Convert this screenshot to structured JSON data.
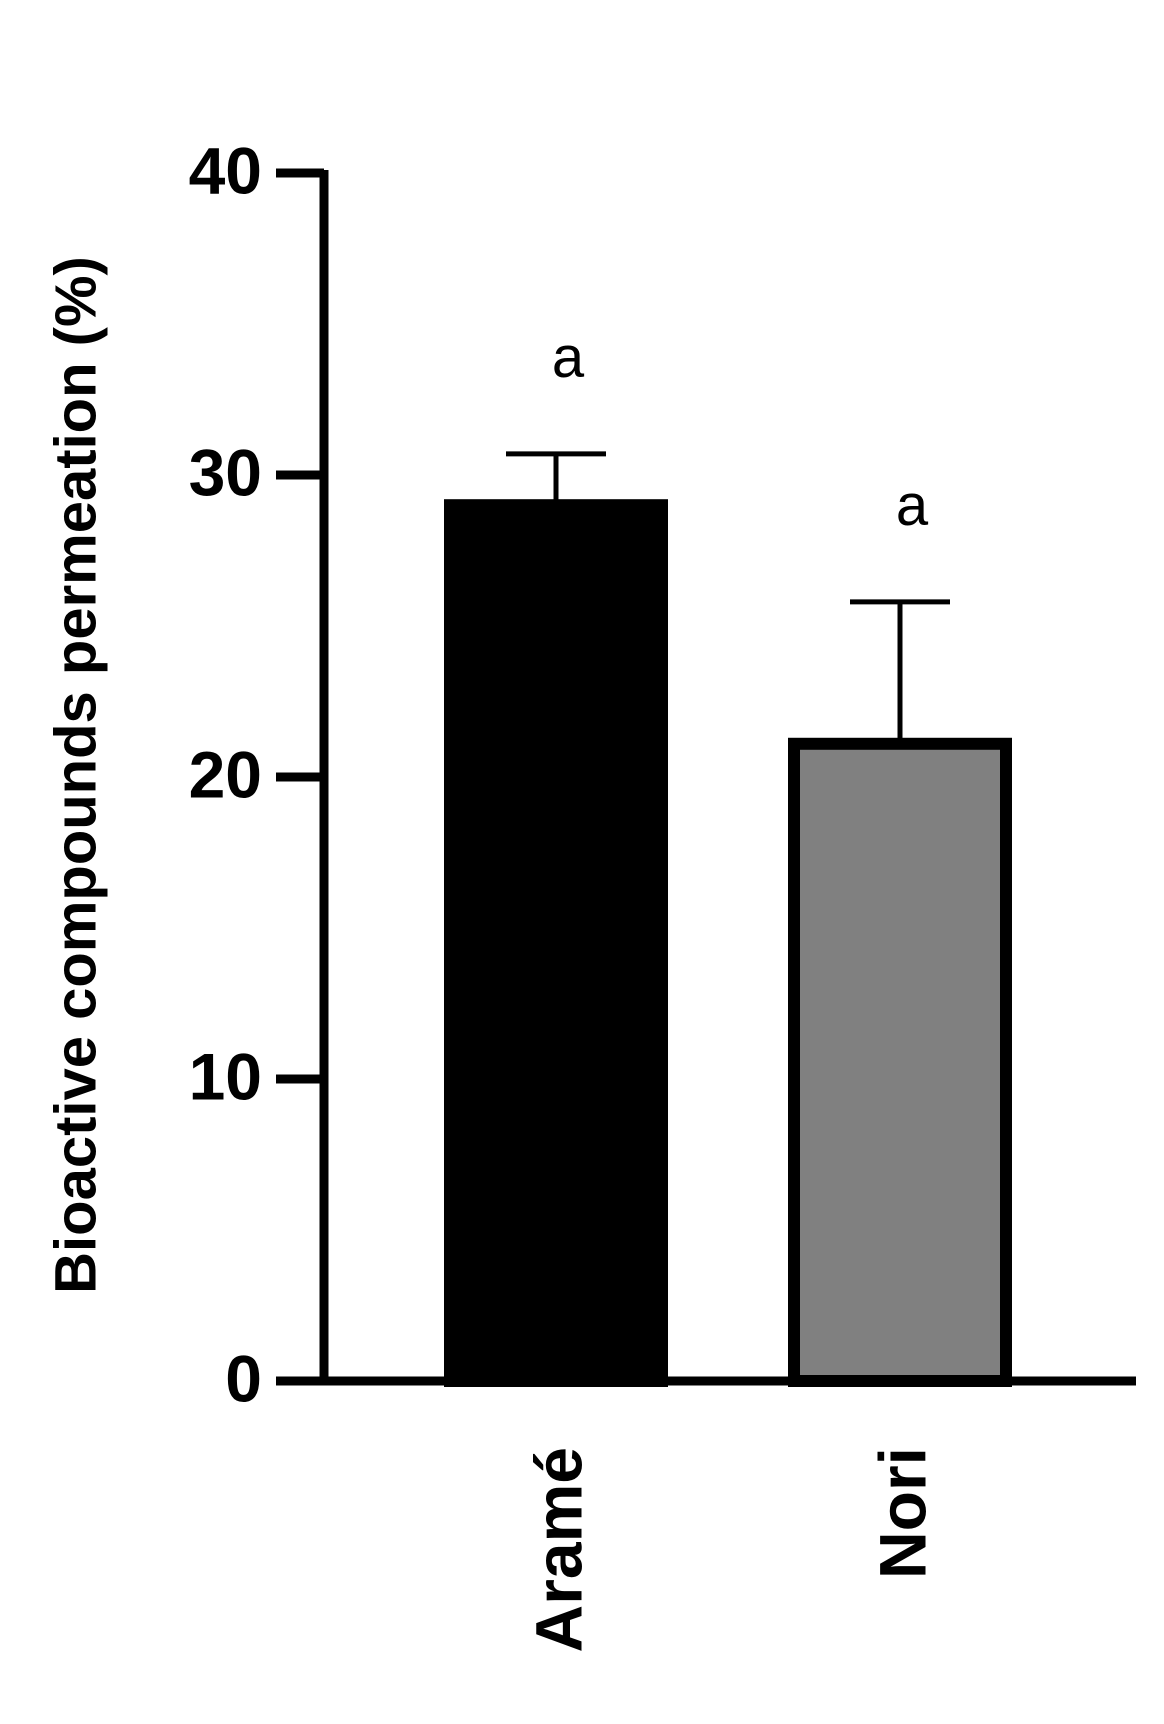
{
  "chart_data": {
    "type": "bar",
    "y_label": "Bioactive compounds permeation (%)",
    "categories": [
      "Aramé",
      "Nori"
    ],
    "values": [
      29,
      21.1
    ],
    "errors": [
      1.7,
      4.7
    ],
    "colors": [
      "#000000",
      "#808080"
    ],
    "annotations": [
      "a",
      "a"
    ],
    "ylim": [
      0,
      40
    ],
    "yticks": [
      0,
      10,
      20,
      30,
      40
    ],
    "grid": false
  }
}
